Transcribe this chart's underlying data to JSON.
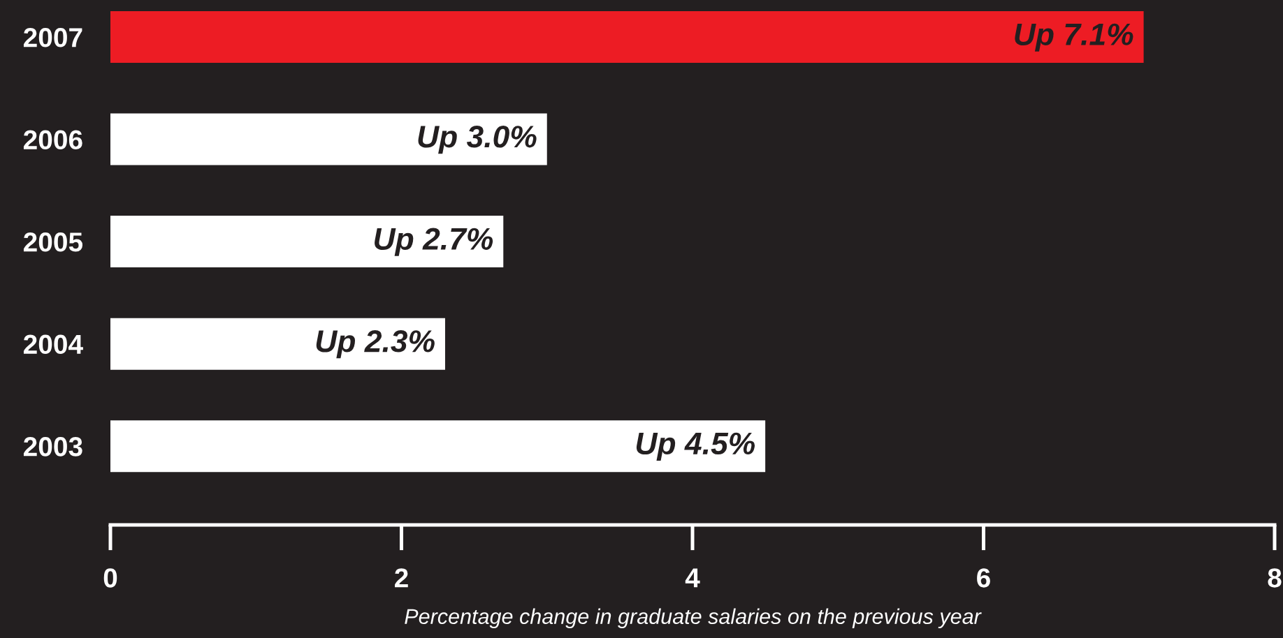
{
  "chart_data": {
    "type": "bar",
    "orientation": "horizontal",
    "categories": [
      "2007",
      "2006",
      "2005",
      "2004",
      "2003"
    ],
    "values": [
      7.1,
      3.0,
      2.7,
      2.3,
      4.5
    ],
    "colors": [
      "#ed1c24",
      "#ffffff",
      "#ffffff",
      "#ffffff",
      "#ffffff"
    ],
    "value_labels": [
      "Up 7.1%",
      "Up 3.0%",
      "Up 2.7%",
      "Up 2.3%",
      "Up 4.5%"
    ],
    "xlim": [
      0,
      8
    ],
    "xticks": [
      0,
      2,
      4,
      6,
      8
    ],
    "xlabel": "Percentage change in graduate salaries on the previous year"
  }
}
